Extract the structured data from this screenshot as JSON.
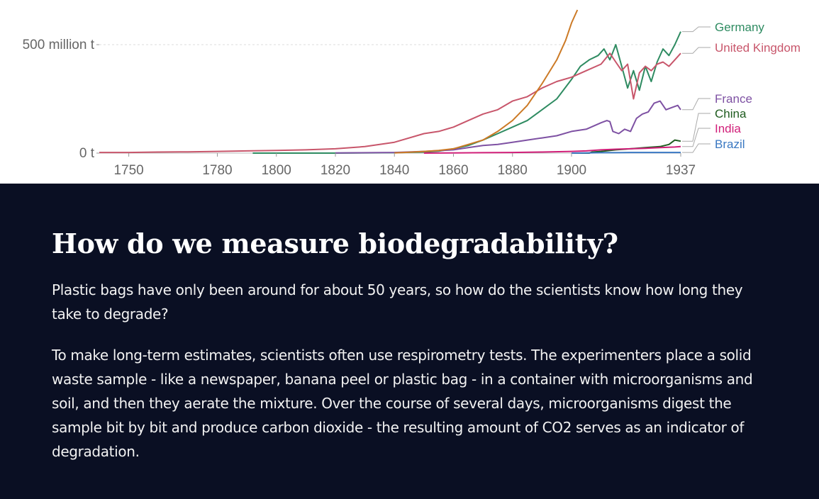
{
  "chart_data": {
    "type": "line",
    "y_unit": "million t",
    "x_ticks": [
      "1750",
      "1780",
      "1800",
      "1820",
      "1840",
      "1860",
      "1880",
      "1900",
      "1937"
    ],
    "y_ticks": [
      "0 t",
      "500 million t"
    ],
    "xlim": [
      1740,
      1937
    ],
    "ylim": [
      0,
      650
    ],
    "grid": true,
    "legend": "right",
    "series": [
      {
        "name": "Germany",
        "color": "#2e8b61",
        "x": [
          1792,
          1820,
          1840,
          1850,
          1855,
          1860,
          1865,
          1870,
          1875,
          1880,
          1885,
          1890,
          1895,
          1900,
          1903,
          1906,
          1909,
          1911,
          1913,
          1915,
          1917,
          1919,
          1921,
          1923,
          1925,
          1927,
          1929,
          1931,
          1933,
          1935,
          1937
        ],
        "y": [
          0,
          0,
          2,
          5,
          9,
          20,
          35,
          60,
          90,
          120,
          150,
          200,
          250,
          340,
          400,
          430,
          450,
          480,
          430,
          500,
          400,
          300,
          380,
          290,
          400,
          330,
          420,
          480,
          450,
          500,
          560
        ]
      },
      {
        "name": "United Kingdom",
        "color": "#c8566b",
        "x": [
          1740,
          1750,
          1760,
          1770,
          1780,
          1790,
          1800,
          1810,
          1820,
          1830,
          1840,
          1850,
          1855,
          1860,
          1865,
          1870,
          1875,
          1880,
          1885,
          1890,
          1895,
          1900,
          1905,
          1910,
          1913,
          1915,
          1917,
          1919,
          1921,
          1923,
          1925,
          1927,
          1929,
          1931,
          1933,
          1935,
          1937
        ],
        "y": [
          3,
          3,
          5,
          6,
          8,
          10,
          12,
          15,
          20,
          30,
          50,
          90,
          100,
          120,
          150,
          180,
          200,
          240,
          260,
          300,
          330,
          350,
          380,
          410,
          460,
          420,
          380,
          410,
          250,
          370,
          400,
          380,
          410,
          420,
          400,
          430,
          460
        ]
      },
      {
        "name": "France",
        "color": "#7e51a3",
        "x": [
          1820,
          1840,
          1850,
          1860,
          1865,
          1870,
          1875,
          1880,
          1885,
          1890,
          1895,
          1900,
          1905,
          1910,
          1912,
          1913,
          1914,
          1916,
          1918,
          1920,
          1922,
          1924,
          1926,
          1928,
          1930,
          1932,
          1934,
          1936,
          1937
        ],
        "y": [
          1,
          3,
          8,
          15,
          25,
          35,
          40,
          50,
          60,
          70,
          80,
          100,
          110,
          140,
          150,
          145,
          100,
          90,
          110,
          100,
          160,
          180,
          190,
          230,
          240,
          200,
          210,
          220,
          200
        ]
      },
      {
        "name": "China",
        "color": "#1f5c1f",
        "x": [
          1900,
          1906,
          1907,
          1910,
          1915,
          1920,
          1925,
          1930,
          1933,
          1935,
          1937
        ],
        "y": [
          0,
          0,
          5,
          8,
          15,
          20,
          25,
          30,
          40,
          60,
          55
        ]
      },
      {
        "name": "India",
        "color": "#d11f79",
        "x": [
          1850,
          1860,
          1870,
          1880,
          1890,
          1900,
          1905,
          1910,
          1915,
          1920,
          1925,
          1930,
          1935,
          1937
        ],
        "y": [
          0,
          1,
          2,
          3,
          5,
          8,
          10,
          15,
          18,
          20,
          22,
          25,
          28,
          30
        ]
      },
      {
        "name": "Brazil",
        "color": "#3a78c2",
        "x": [
          1900,
          1905,
          1910,
          1915,
          1920,
          1925,
          1930,
          1935,
          1937
        ],
        "y": [
          0,
          1,
          2,
          2,
          3,
          3,
          3,
          3,
          3
        ]
      },
      {
        "name": "",
        "color": "#cc7a26",
        "x": [
          1840,
          1845,
          1850,
          1855,
          1860,
          1865,
          1870,
          1875,
          1880,
          1885,
          1890,
          1895,
          1898,
          1900,
          1902
        ],
        "y": [
          1,
          4,
          8,
          12,
          20,
          40,
          60,
          100,
          150,
          220,
          320,
          430,
          520,
          600,
          660
        ]
      }
    ]
  },
  "article": {
    "heading": "How do we measure biodegradability?",
    "paragraph_1": "Plastic bags have only been around for about 50 years, so how do the scientists know how long they take to degrade?",
    "paragraph_2": "To make long-term estimates, scientists often use respirometry tests. The experimenters place a solid waste sample - like a newspaper, banana peel or plastic bag - in a container with microorganisms and soil, and then they aerate the mixture. Over the course of several days, microorganisms digest the sample bit by bit and produce carbon dioxide - the resulting amount of CO2 serves as an indicator of degradation."
  },
  "colors": {
    "article_background": "#0a0f23",
    "article_text": "#ffffff",
    "axis_text": "#555555"
  }
}
